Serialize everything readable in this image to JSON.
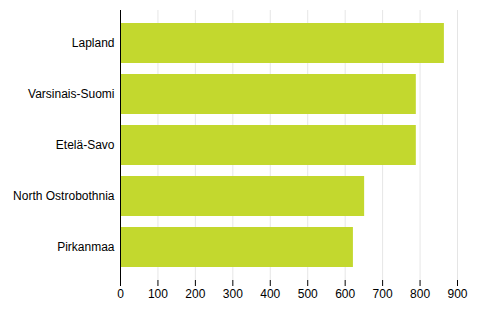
{
  "chart_data": {
    "type": "bar",
    "orientation": "horizontal",
    "categories": [
      "Lapland",
      "Varsinais-Suomi",
      "Etelä-Savo",
      "North Ostrobothnia",
      "Pirkanmaa"
    ],
    "values": [
      865,
      790,
      790,
      652,
      622
    ],
    "color": "#c3d82e",
    "xlim": [
      0,
      900
    ],
    "xticks": [
      0,
      100,
      200,
      300,
      400,
      500,
      600,
      700,
      800,
      900
    ],
    "grid": true
  }
}
